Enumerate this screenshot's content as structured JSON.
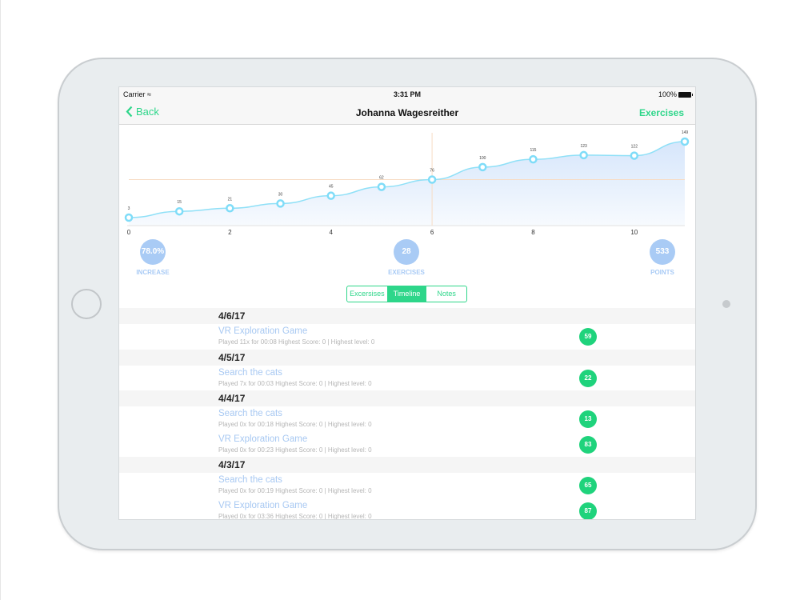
{
  "status_bar": {
    "carrier": "Carrier",
    "time": "3:31 PM",
    "battery": "100%"
  },
  "nav": {
    "back_label": "Back",
    "title": "Johanna Wagesreither",
    "right_label": "Exercises"
  },
  "colors": {
    "accent": "#2ed68a",
    "stat_circle": "#a9cbf5",
    "badge": "#1fd37c",
    "line": "#8fe0f7",
    "reference_line": "#f7dcc4"
  },
  "chart_data": {
    "type": "area",
    "x": [
      0,
      1,
      2,
      3,
      4,
      5,
      6,
      7,
      8,
      9,
      10,
      11
    ],
    "values": [
      3,
      15,
      21,
      30,
      45,
      62,
      76,
      100,
      115,
      123,
      122,
      149
    ],
    "data_labels": [
      "3",
      "15",
      "21",
      "30",
      "45",
      "62",
      "76",
      "100",
      "115",
      "123",
      "122",
      "149"
    ],
    "x_ticks": [
      "0",
      "2",
      "4",
      "6",
      "8",
      "10"
    ],
    "x_tick_values": [
      0,
      2,
      4,
      6,
      8,
      10
    ],
    "xlim": [
      0,
      11
    ],
    "highlight_index": 6,
    "grid": false
  },
  "stats": [
    {
      "value": "78.0%",
      "label": "INCREASE"
    },
    {
      "value": "28",
      "label": "EXERCISES"
    },
    {
      "value": "533",
      "label": "POINTS"
    }
  ],
  "segments": [
    "Excersises",
    "Timeline",
    "Notes"
  ],
  "selected_segment": "Timeline",
  "timeline": [
    {
      "date": "4/6/17",
      "items": [
        {
          "name": "VR Exploration Game",
          "detail": "Played 11x for 00:08 Highest Score: 0 | Highest level: 0",
          "score": "59"
        }
      ]
    },
    {
      "date": "4/5/17",
      "items": [
        {
          "name": "Search the cats",
          "detail": "Played 7x for 00:03 Highest Score: 0 | Highest level: 0",
          "score": "22"
        }
      ]
    },
    {
      "date": "4/4/17",
      "items": [
        {
          "name": "Search the cats",
          "detail": "Played 0x for 00:18 Highest Score: 0 | Highest level: 0",
          "score": "13"
        },
        {
          "name": "VR Exploration Game",
          "detail": "Played 0x for 00:23 Highest Score: 0 | Highest level: 0",
          "score": "83"
        }
      ]
    },
    {
      "date": "4/3/17",
      "items": [
        {
          "name": "Search the cats",
          "detail": "Played 0x for 00:19 Highest Score: 0 | Highest level: 0",
          "score": "65"
        },
        {
          "name": "VR Exploration Game",
          "detail": "Played 0x for 03:36 Highest Score: 0 | Highest level: 0",
          "score": "87"
        }
      ]
    }
  ]
}
